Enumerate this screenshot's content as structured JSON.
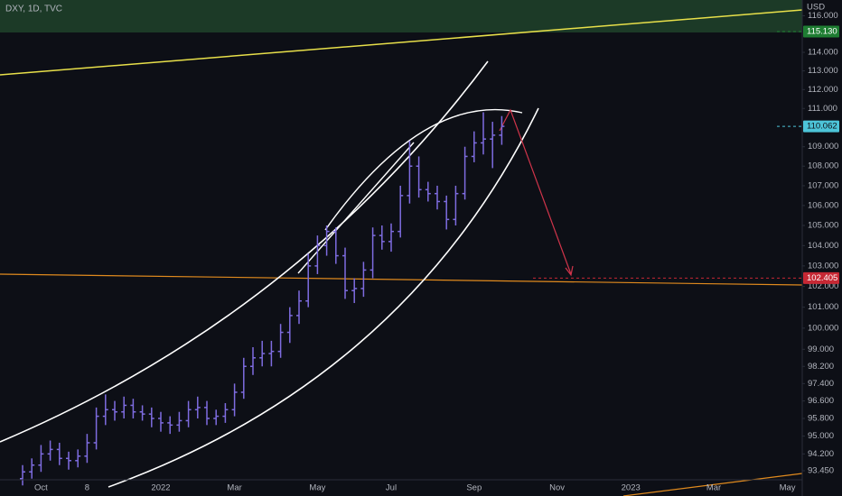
{
  "chart_data": {
    "type": "ohlc",
    "title": "DXY, 1D, TVC",
    "unit": "USD",
    "color": "#7e6ce0",
    "log_scale": true,
    "categories": [
      null,
      null,
      "Oct",
      null,
      null,
      null,
      null,
      "8",
      null,
      null,
      null,
      null,
      null,
      null,
      null,
      "2022",
      null,
      null,
      null,
      null,
      null,
      null,
      null,
      "Mar",
      null,
      null,
      null,
      null,
      null,
      null,
      null,
      null,
      "May",
      null,
      null,
      null,
      null,
      null,
      null,
      null,
      "Jul",
      null,
      null,
      null,
      null,
      null,
      null,
      null,
      null,
      "Sep",
      null,
      null,
      null,
      null,
      null,
      null,
      null,
      null,
      "Nov",
      null,
      null,
      null,
      null,
      null,
      null,
      null,
      "2023",
      null,
      null,
      null,
      null,
      null,
      null,
      null,
      null,
      "Mar",
      null,
      null,
      null,
      null,
      null,
      null,
      null,
      "May",
      null
    ],
    "open": [
      93.1,
      93.4,
      93.7,
      94.2,
      94.4,
      94.0,
      93.9,
      94.1,
      94.7,
      95.9,
      96.2,
      96.1,
      96.4,
      96.1,
      96.0,
      95.8,
      95.6,
      95.5,
      95.7,
      96.2,
      96.3,
      95.8,
      95.9,
      96.2,
      97.0,
      98.2,
      98.6,
      98.8,
      98.9,
      99.8,
      100.6,
      101.3,
      103.0,
      104.0,
      104.7,
      103.5,
      101.8,
      101.9,
      102.8,
      104.5,
      104.2,
      104.7,
      106.5,
      108.0,
      106.8,
      106.6,
      106.2,
      105.3,
      106.6,
      108.5,
      109.2,
      109.4,
      109.6,
      null,
      null,
      null,
      null,
      null,
      null,
      null,
      null,
      null,
      null,
      null,
      null,
      null,
      null,
      null,
      null,
      null,
      null,
      null,
      null,
      null,
      null,
      null,
      null,
      null,
      null,
      null,
      null,
      null,
      null,
      null,
      null
    ],
    "high": [
      93.7,
      94.0,
      94.6,
      94.8,
      94.7,
      94.3,
      94.4,
      95.1,
      96.3,
      96.9,
      96.6,
      96.8,
      96.7,
      96.4,
      96.3,
      96.1,
      95.9,
      96.1,
      96.6,
      96.8,
      96.6,
      96.2,
      96.5,
      97.4,
      98.6,
      99.1,
      99.4,
      99.4,
      100.2,
      101.0,
      101.8,
      103.6,
      104.5,
      105.0,
      104.9,
      103.9,
      102.4,
      103.2,
      104.9,
      105.0,
      105.1,
      107.0,
      109.3,
      108.5,
      107.2,
      107.0,
      106.5,
      107.0,
      109.0,
      109.8,
      110.8,
      110.3,
      110.6,
      null,
      null,
      null,
      null,
      null,
      null,
      null,
      null,
      null,
      null,
      null,
      null,
      null,
      null,
      null,
      null,
      null,
      null,
      null,
      null,
      null,
      null,
      null,
      null,
      null,
      null,
      null,
      null,
      null,
      null,
      null,
      null
    ],
    "low": [
      92.8,
      93.1,
      93.4,
      93.9,
      93.7,
      93.5,
      93.6,
      93.8,
      94.4,
      95.5,
      95.7,
      95.8,
      95.8,
      95.7,
      95.4,
      95.2,
      95.1,
      95.2,
      95.4,
      95.8,
      95.5,
      95.5,
      95.6,
      95.9,
      96.7,
      97.8,
      98.2,
      98.2,
      98.6,
      99.3,
      100.2,
      101.0,
      102.6,
      103.5,
      103.1,
      101.4,
      101.2,
      101.5,
      102.4,
      103.8,
      103.7,
      104.4,
      106.1,
      106.4,
      106.2,
      105.8,
      104.8,
      105.0,
      106.3,
      108.2,
      108.6,
      107.9,
      109.1,
      null,
      null,
      null,
      null,
      null,
      null,
      null,
      null,
      null,
      null,
      null,
      null,
      null,
      null,
      null,
      null,
      null,
      null,
      null,
      null,
      null,
      null,
      null,
      null,
      null,
      null,
      null,
      null,
      null,
      null,
      null,
      null
    ],
    "close": [
      93.4,
      93.7,
      94.2,
      94.4,
      94.0,
      93.9,
      94.1,
      94.7,
      95.9,
      96.2,
      96.1,
      96.4,
      96.1,
      96.0,
      95.8,
      95.6,
      95.5,
      95.7,
      96.2,
      96.3,
      95.8,
      95.9,
      96.2,
      97.0,
      98.2,
      98.6,
      98.8,
      98.9,
      99.8,
      100.6,
      101.3,
      103.0,
      104.0,
      104.7,
      103.5,
      101.8,
      101.9,
      102.8,
      104.5,
      104.2,
      104.7,
      106.5,
      108.0,
      106.8,
      106.6,
      106.2,
      105.3,
      106.6,
      108.5,
      109.2,
      109.4,
      109.6,
      110.062,
      null,
      null,
      null,
      null,
      null,
      null,
      null,
      null,
      null,
      null,
      null,
      null,
      null,
      null,
      null,
      null,
      null,
      null,
      null,
      null,
      null,
      null,
      null,
      null,
      null,
      null,
      null,
      null,
      null,
      null,
      null,
      null
    ],
    "ylim": [
      93.05,
      116.87
    ],
    "yticks": [
      {
        "value": 116,
        "label": "116.000"
      },
      {
        "value": 114,
        "label": "114.000"
      },
      {
        "value": 113,
        "label": "113.000"
      },
      {
        "value": 112,
        "label": "112.000"
      },
      {
        "value": 111,
        "label": "111.000"
      },
      {
        "value": 109,
        "label": "109.000"
      },
      {
        "value": 108,
        "label": "108.000"
      },
      {
        "value": 107,
        "label": "107.000"
      },
      {
        "value": 106,
        "label": "106.000"
      },
      {
        "value": 105,
        "label": "105.000"
      },
      {
        "value": 104,
        "label": "104.000"
      },
      {
        "value": 103,
        "label": "103.000"
      },
      {
        "value": 102,
        "label": "102.000"
      },
      {
        "value": 101,
        "label": "101.000"
      },
      {
        "value": 100,
        "label": "100.000"
      },
      {
        "value": 99,
        "label": "99.000"
      },
      {
        "value": 98.2,
        "label": "98.200"
      },
      {
        "value": 97.4,
        "label": "97.400"
      },
      {
        "value": 96.6,
        "label": "96.600"
      },
      {
        "value": 95.8,
        "label": "95.800"
      },
      {
        "value": 95,
        "label": "95.000"
      },
      {
        "value": 94.2,
        "label": "94.200"
      },
      {
        "value": 93.45,
        "label": "93.450"
      }
    ],
    "price_labels": [
      {
        "value": 115.13,
        "label": "115.130",
        "color": "#1e7d32"
      },
      {
        "value": 110.062,
        "label": "110.062",
        "color": "#4dc4d8"
      },
      {
        "value": 102.405,
        "label": "102.405",
        "color": "#c62834"
      }
    ]
  }
}
